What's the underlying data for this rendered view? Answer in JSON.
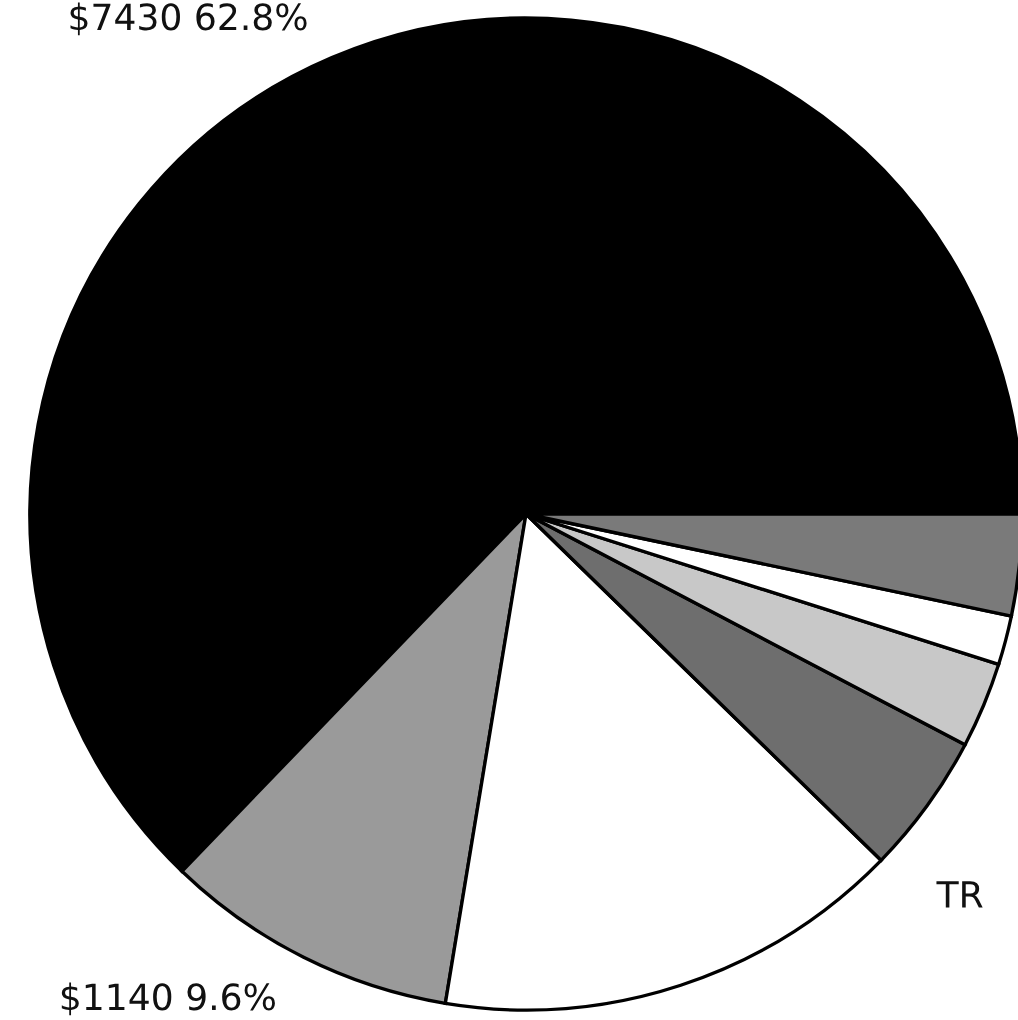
{
  "chart_data": {
    "type": "pie",
    "categories": [
      null,
      null,
      null,
      null,
      null,
      null,
      null
    ],
    "values": [
      62.8,
      9.6,
      15.3,
      4.6,
      2.8,
      1.6,
      3.3
    ],
    "value_labels": [
      "$7430 62.8%",
      "$1140 9.6%",
      null,
      null,
      null,
      null,
      null
    ],
    "colors": [
      "#000000",
      "#9a9a9a",
      "#ffffff",
      "#6e6e6e",
      "#c8c8c8",
      "#ffffff",
      "#7a7a7a"
    ],
    "annotations": [
      "TR"
    ]
  }
}
